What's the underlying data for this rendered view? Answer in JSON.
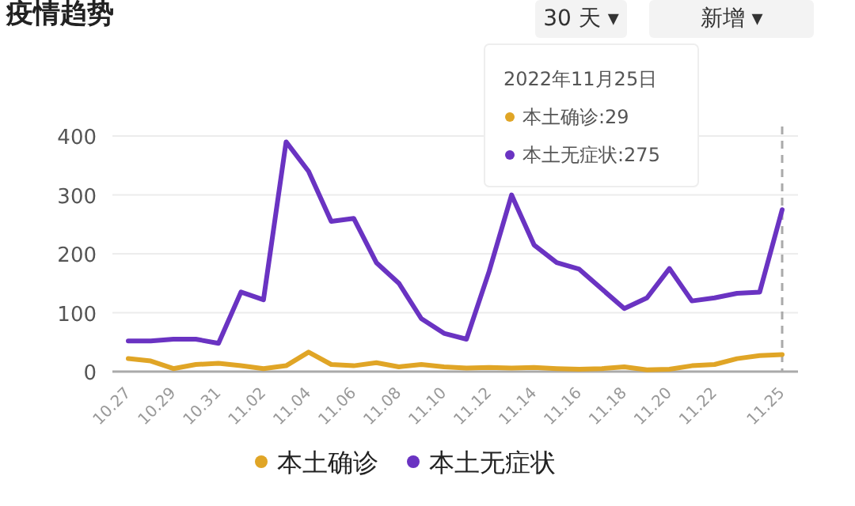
{
  "chart_data": {
    "type": "line",
    "title": "疫情趋势",
    "categories": [
      "10.27",
      null,
      "10.29",
      null,
      "10.31",
      null,
      "11.02",
      null,
      "11.04",
      null,
      "11.06",
      null,
      "11.08",
      null,
      "11.10",
      null,
      "11.12",
      null,
      "11.14",
      null,
      "11.16",
      null,
      "11.18",
      null,
      "11.20",
      null,
      "11.22",
      null,
      null,
      "11.25"
    ],
    "series": [
      {
        "name": "本土确诊",
        "color": "#e0a526",
        "values": [
          22,
          18,
          5,
          12,
          14,
          10,
          5,
          10,
          33,
          12,
          10,
          15,
          8,
          12,
          8,
          6,
          7,
          6,
          7,
          5,
          4,
          5,
          8,
          3,
          4,
          10,
          12,
          22,
          27,
          29
        ]
      },
      {
        "name": "本土无症状",
        "color": "#6a33c2",
        "values": [
          52,
          52,
          55,
          55,
          48,
          135,
          122,
          390,
          340,
          255,
          260,
          185,
          150,
          90,
          65,
          55,
          170,
          300,
          215,
          185,
          174,
          140,
          107,
          125,
          175,
          120,
          125,
          133,
          135,
          275
        ]
      }
    ],
    "ylim": [
      0,
      400
    ],
    "yticks": [
      0,
      100,
      200,
      300,
      400
    ],
    "grid": "y",
    "legend": "bottom",
    "marker": "none",
    "line_style": "solid",
    "ref_lines": [
      {
        "axis": "x",
        "value": "11.25",
        "label": null,
        "color": "#aaaaaa",
        "line_style": "dashed"
      }
    ],
    "annotations": [
      "30 天 ▾",
      "新增 ▾",
      "2022年11月25日",
      "本土确诊:29",
      "本土无症状:275"
    ]
  }
}
